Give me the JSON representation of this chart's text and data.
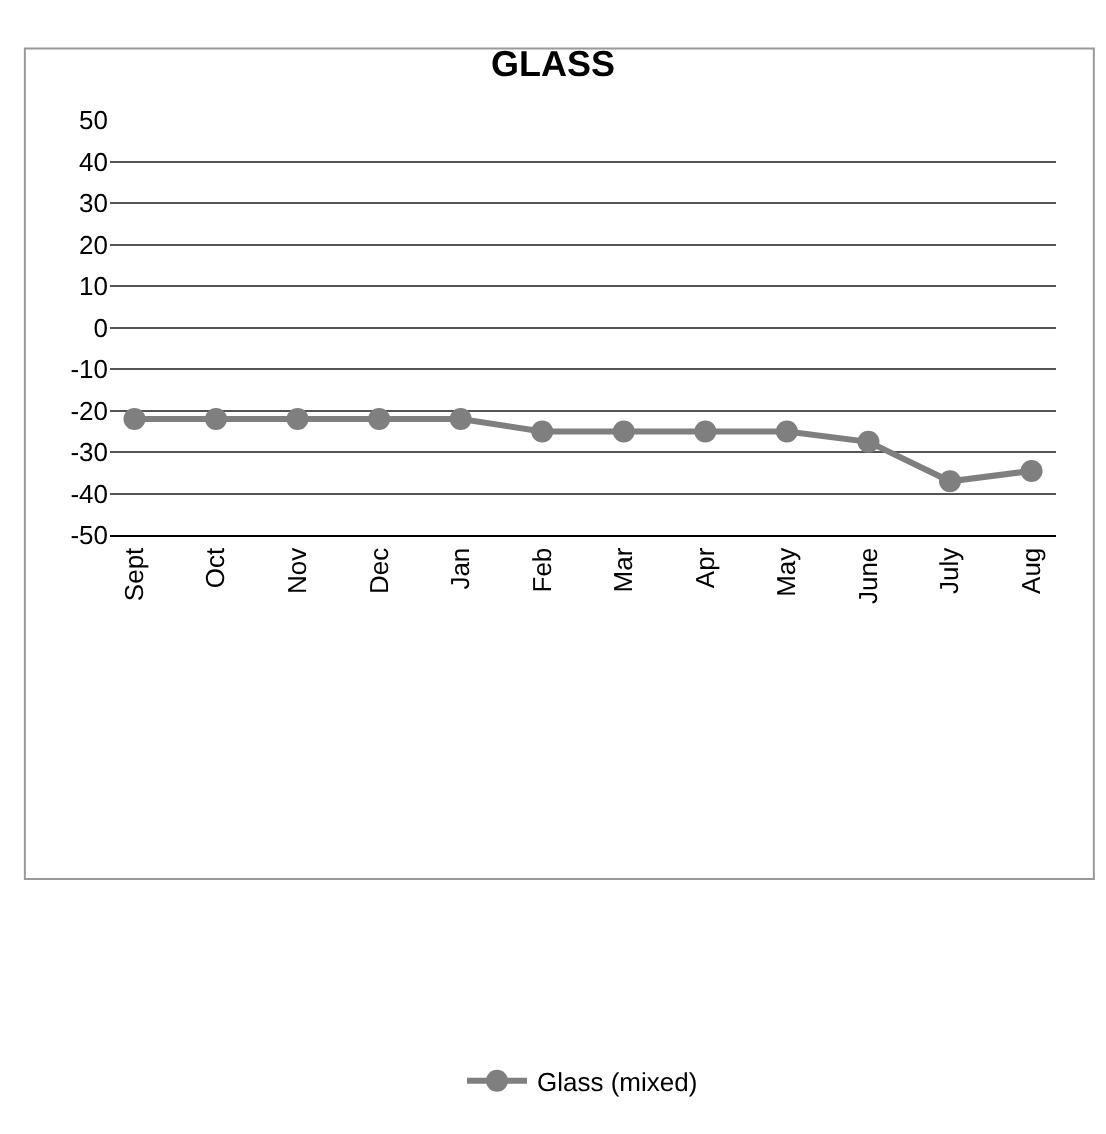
{
  "chart_data": {
    "type": "line",
    "title": "GLASS",
    "categories": [
      "Sept",
      "Oct",
      "Nov",
      "Dec",
      "Jan",
      "Feb",
      "Mar",
      "Apr",
      "May",
      "June",
      "July",
      "Aug"
    ],
    "series": [
      {
        "name": "Glass (mixed)",
        "color": "#7f7f7f",
        "values": [
          -22,
          -22,
          -22,
          -22,
          -22,
          -25,
          -25,
          -25,
          -25,
          -27.5,
          -37,
          -34.5
        ]
      }
    ],
    "ylim": [
      -50,
      50
    ],
    "yticks": [
      -50,
      -40,
      -30,
      -20,
      -10,
      0,
      10,
      20,
      30,
      40,
      50
    ],
    "grid": "y",
    "legend": "bottom",
    "marker": "circle",
    "line_style": "solid"
  }
}
